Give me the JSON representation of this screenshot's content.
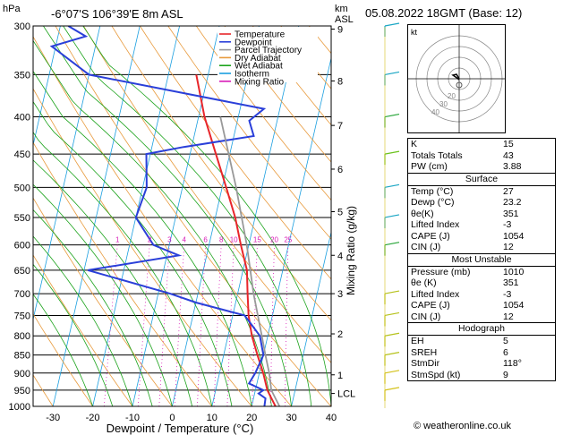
{
  "header": {
    "hpa_label": "hPa",
    "location": "-6°07'S 106°39'E 8m ASL",
    "km_label": "km",
    "asl_label": "ASL",
    "datetime": "05.08.2022 18GMT (Base: 12)"
  },
  "legend": [
    {
      "label": "Temperature",
      "color": "#e8262b"
    },
    {
      "label": "Dewpoint",
      "color": "#2a3fd9"
    },
    {
      "label": "Parcel Trajectory",
      "color": "#999999"
    },
    {
      "label": "Dry Adiabat",
      "color": "#e89a3c"
    },
    {
      "label": "Wet Adiabat",
      "color": "#1ca31c"
    },
    {
      "label": "Isotherm",
      "color": "#1b9fe0"
    },
    {
      "label": "Mixing Ratio",
      "color": "#d81bb7"
    }
  ],
  "chart_data": {
    "type": "line",
    "xlabel": "Dewpoint / Temperature (°C)",
    "y2label": "Mixing Ratio (g/kg)",
    "x_ticks": [
      "-30",
      "-20",
      "-10",
      "0",
      "10",
      "20",
      "30",
      "40"
    ],
    "pressure_ticks": [
      "300",
      "350",
      "400",
      "450",
      "500",
      "550",
      "600",
      "650",
      "700",
      "750",
      "800",
      "850",
      "900",
      "950",
      "1000"
    ],
    "km_ticks": [
      "9",
      "8",
      "7",
      "6",
      "5",
      "4",
      "3",
      "2",
      "1",
      "LCL"
    ],
    "mixing_ratio_labels": [
      "1",
      "2",
      "3",
      "4",
      "6",
      "8",
      "10",
      "15",
      "20",
      "25"
    ],
    "series": [
      {
        "name": "Temperature",
        "points": [
          [
            1000,
            26
          ],
          [
            950,
            23
          ],
          [
            900,
            21
          ],
          [
            850,
            18.5
          ],
          [
            800,
            16
          ],
          [
            750,
            14
          ],
          [
            700,
            12.5
          ],
          [
            650,
            11
          ],
          [
            600,
            8
          ],
          [
            550,
            5
          ],
          [
            500,
            1
          ],
          [
            450,
            -3.5
          ],
          [
            400,
            -8.5
          ],
          [
            350,
            -13
          ]
        ]
      },
      {
        "name": "Dewpoint",
        "points": [
          [
            1000,
            23.2
          ],
          [
            975,
            23
          ],
          [
            960,
            21
          ],
          [
            950,
            22
          ],
          [
            930,
            18
          ],
          [
            900,
            19
          ],
          [
            850,
            20
          ],
          [
            800,
            18
          ],
          [
            750,
            13
          ],
          [
            720,
            0
          ],
          [
            700,
            -7
          ],
          [
            650,
            -29
          ],
          [
            620,
            -7
          ],
          [
            600,
            -14
          ],
          [
            550,
            -20
          ],
          [
            500,
            -19
          ],
          [
            450,
            -21
          ],
          [
            440,
            -12
          ],
          [
            425,
            5
          ],
          [
            405,
            3
          ],
          [
            390,
            6
          ],
          [
            350,
            -40
          ],
          [
            320,
            -51
          ],
          [
            310,
            -43
          ],
          [
            300,
            -48
          ]
        ]
      },
      {
        "name": "Parcel Trajectory",
        "points": [
          [
            1000,
            27
          ],
          [
            950,
            24
          ],
          [
            900,
            22.5
          ],
          [
            850,
            20.5
          ],
          [
            800,
            18.5
          ],
          [
            700,
            14
          ],
          [
            600,
            9.5
          ],
          [
            500,
            3.5
          ],
          [
            400,
            -4.5
          ]
        ]
      }
    ]
  },
  "hodograph": {
    "unit": "kt",
    "rings": [
      "40",
      "30",
      "20"
    ]
  },
  "indices": [
    {
      "label": "K",
      "value": "15"
    },
    {
      "label": "Totals Totals",
      "value": "43"
    },
    {
      "label": "PW (cm)",
      "value": "3.88"
    }
  ],
  "surface": {
    "title": "Surface",
    "rows": [
      {
        "label": "Temp (°C)",
        "value": "27"
      },
      {
        "label": "Dewp (°C)",
        "value": "23.2"
      },
      {
        "label": "θe(K)",
        "value": "351"
      },
      {
        "label": "Lifted Index",
        "value": "-3"
      },
      {
        "label": "CAPE (J)",
        "value": "1054"
      },
      {
        "label": "CIN (J)",
        "value": "12"
      }
    ]
  },
  "most_unstable": {
    "title": "Most Unstable",
    "rows": [
      {
        "label": "Pressure (mb)",
        "value": "1010"
      },
      {
        "label": "θe (K)",
        "value": "351"
      },
      {
        "label": "Lifted Index",
        "value": "-3"
      },
      {
        "label": "CAPE (J)",
        "value": "1054"
      },
      {
        "label": "CIN (J)",
        "value": "12"
      }
    ]
  },
  "hodograph_table": {
    "title": "Hodograph",
    "rows": [
      {
        "label": "EH",
        "value": "5"
      },
      {
        "label": "SREH",
        "value": "6"
      },
      {
        "label": "StmDir",
        "value": "118°"
      },
      {
        "label": "StmSpd (kt)",
        "value": "9"
      }
    ]
  },
  "footer": "© weatheronline.co.uk"
}
